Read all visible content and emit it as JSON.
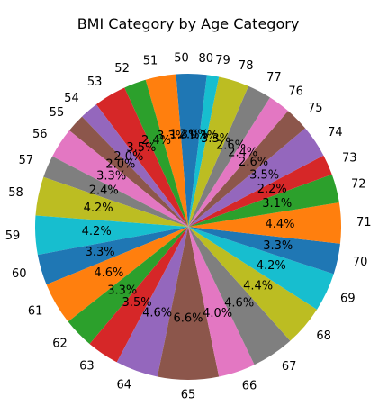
{
  "chart_data": {
    "type": "pie",
    "title": "BMI Category by Age Category",
    "start_angle_deg": 90,
    "direction": "counterclockwise",
    "categories": [
      "50",
      "51",
      "52",
      "53",
      "54",
      "55",
      "56",
      "57",
      "58",
      "59",
      "60",
      "61",
      "62",
      "63",
      "64",
      "65",
      "66",
      "67",
      "68",
      "69",
      "70",
      "71",
      "72",
      "73",
      "74",
      "75",
      "76",
      "77",
      "78",
      "79",
      "80"
    ],
    "values": [
      1.3,
      3.3,
      2.4,
      3.5,
      2.0,
      2.0,
      3.3,
      2.4,
      4.2,
      4.2,
      3.3,
      4.6,
      3.3,
      3.5,
      4.6,
      6.6,
      4.0,
      4.6,
      4.4,
      4.2,
      3.3,
      4.4,
      3.1,
      2.2,
      3.5,
      2.6,
      2.4,
      2.6,
      3.3,
      1.3,
      2.0
    ],
    "value_labels": [
      "1.3%",
      "3.3%",
      "2.4%",
      "3.5%",
      "2.0%",
      "2.0%",
      "3.3%",
      "2.4%",
      "4.2%",
      "4.2%",
      "3.3%",
      "4.6%",
      "3.3%",
      "3.5%",
      "4.6%",
      "6.6%",
      "4.0%",
      "4.6%",
      "4.4%",
      "4.2%",
      "3.3%",
      "4.4%",
      "3.1%",
      "2.2%",
      "3.5%",
      "2.6%",
      "2.4%",
      "2.6%",
      "3.3%",
      "1.3%",
      "2.0%"
    ],
    "colors": [
      "#1f77b4",
      "#ff7f0e",
      "#2ca02c",
      "#d62728",
      "#9467bd",
      "#8c564b",
      "#e377c2",
      "#7f7f7f",
      "#bcbd22",
      "#17becf"
    ]
  }
}
